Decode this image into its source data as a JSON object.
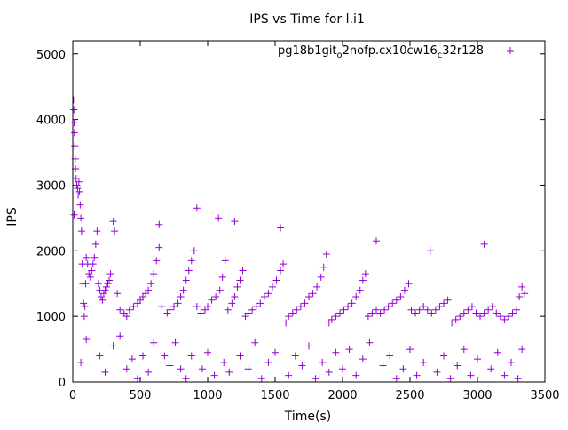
{
  "chart_data": {
    "type": "scatter",
    "title": "IPS vs Time for l.i1",
    "xlabel": "Time(s)",
    "ylabel": "IPS",
    "xlim": [
      0,
      3500
    ],
    "ylim": [
      0,
      5200
    ],
    "x_ticks": [
      0,
      500,
      1000,
      1500,
      2000,
      2500,
      3000,
      3500
    ],
    "y_ticks": [
      0,
      1000,
      2000,
      3000,
      4000,
      5000
    ],
    "grid": false,
    "legend_position": "top-right",
    "marker": "+",
    "color": "#9400d3",
    "series": [
      {
        "name_parts": [
          "pg18b1git",
          "o",
          "2nofp.cx10cw16",
          "c",
          "32r128"
        ],
        "x_range": [
          5,
          3350
        ],
        "points": [
          [
            5,
            4300
          ],
          [
            8,
            4150
          ],
          [
            10,
            3950
          ],
          [
            12,
            3800
          ],
          [
            15,
            3600
          ],
          [
            18,
            3400
          ],
          [
            20,
            3250
          ],
          [
            25,
            3100
          ],
          [
            30,
            3000
          ],
          [
            35,
            2950
          ],
          [
            40,
            2850
          ],
          [
            45,
            3050
          ],
          [
            50,
            2900
          ],
          [
            55,
            2700
          ],
          [
            60,
            2500
          ],
          [
            65,
            2300
          ],
          [
            70,
            1800
          ],
          [
            75,
            1500
          ],
          [
            80,
            1200
          ],
          [
            85,
            1000
          ],
          [
            90,
            1150
          ],
          [
            95,
            1500
          ],
          [
            100,
            1900
          ],
          [
            110,
            1800
          ],
          [
            120,
            1650
          ],
          [
            130,
            1600
          ],
          [
            140,
            1700
          ],
          [
            150,
            1800
          ],
          [
            160,
            1900
          ],
          [
            170,
            2100
          ],
          [
            180,
            2300
          ],
          [
            190,
            1500
          ],
          [
            200,
            1400
          ],
          [
            210,
            1300
          ],
          [
            220,
            1250
          ],
          [
            230,
            1350
          ],
          [
            240,
            1400
          ],
          [
            250,
            1450
          ],
          [
            260,
            1500
          ],
          [
            270,
            1550
          ],
          [
            280,
            1650
          ],
          [
            300,
            2450
          ],
          [
            310,
            2300
          ],
          [
            330,
            1350
          ],
          [
            350,
            1100
          ],
          [
            380,
            1050
          ],
          [
            400,
            1000
          ],
          [
            420,
            1100
          ],
          [
            450,
            1150
          ],
          [
            480,
            1200
          ],
          [
            500,
            1250
          ],
          [
            520,
            1300
          ],
          [
            540,
            1350
          ],
          [
            560,
            1400
          ],
          [
            580,
            1500
          ],
          [
            600,
            1650
          ],
          [
            620,
            1850
          ],
          [
            640,
            2050
          ],
          [
            660,
            1150
          ],
          [
            700,
            1050
          ],
          [
            720,
            1100
          ],
          [
            750,
            1150
          ],
          [
            780,
            1200
          ],
          [
            800,
            1300
          ],
          [
            820,
            1400
          ],
          [
            840,
            1550
          ],
          [
            860,
            1700
          ],
          [
            880,
            1850
          ],
          [
            900,
            2000
          ],
          [
            920,
            1150
          ],
          [
            950,
            1050
          ],
          [
            980,
            1100
          ],
          [
            1000,
            1150
          ],
          [
            1030,
            1250
          ],
          [
            1060,
            1300
          ],
          [
            1090,
            1400
          ],
          [
            1110,
            1600
          ],
          [
            1130,
            1850
          ],
          [
            1150,
            1100
          ],
          [
            1180,
            1200
          ],
          [
            1200,
            1300
          ],
          [
            1220,
            1450
          ],
          [
            1240,
            1550
          ],
          [
            1260,
            1700
          ],
          [
            1280,
            1000
          ],
          [
            1300,
            1050
          ],
          [
            1330,
            1100
          ],
          [
            1360,
            1150
          ],
          [
            1390,
            1200
          ],
          [
            1420,
            1300
          ],
          [
            1450,
            1350
          ],
          [
            1480,
            1450
          ],
          [
            1510,
            1550
          ],
          [
            1540,
            1700
          ],
          [
            1560,
            1800
          ],
          [
            1580,
            900
          ],
          [
            1600,
            1000
          ],
          [
            1630,
            1050
          ],
          [
            1660,
            1100
          ],
          [
            1690,
            1150
          ],
          [
            1720,
            1200
          ],
          [
            1750,
            1300
          ],
          [
            1780,
            1350
          ],
          [
            1810,
            1450
          ],
          [
            1840,
            1600
          ],
          [
            1860,
            1750
          ],
          [
            1880,
            1950
          ],
          [
            1900,
            900
          ],
          [
            1920,
            950
          ],
          [
            1950,
            1000
          ],
          [
            1980,
            1050
          ],
          [
            2010,
            1100
          ],
          [
            2040,
            1150
          ],
          [
            2070,
            1200
          ],
          [
            2100,
            1300
          ],
          [
            2130,
            1400
          ],
          [
            2150,
            1550
          ],
          [
            2170,
            1650
          ],
          [
            2190,
            1000
          ],
          [
            2220,
            1050
          ],
          [
            2250,
            1100
          ],
          [
            2280,
            1050
          ],
          [
            2310,
            1100
          ],
          [
            2340,
            1150
          ],
          [
            2370,
            1200
          ],
          [
            2400,
            1250
          ],
          [
            2430,
            1300
          ],
          [
            2460,
            1400
          ],
          [
            2490,
            1500
          ],
          [
            2510,
            1100
          ],
          [
            2540,
            1050
          ],
          [
            2570,
            1100
          ],
          [
            2600,
            1150
          ],
          [
            2630,
            1100
          ],
          [
            2660,
            1050
          ],
          [
            2690,
            1100
          ],
          [
            2720,
            1150
          ],
          [
            2750,
            1200
          ],
          [
            2780,
            1250
          ],
          [
            2810,
            900
          ],
          [
            2840,
            950
          ],
          [
            2870,
            1000
          ],
          [
            2900,
            1050
          ],
          [
            2930,
            1100
          ],
          [
            2960,
            1150
          ],
          [
            2990,
            1050
          ],
          [
            3020,
            1000
          ],
          [
            3050,
            1050
          ],
          [
            3080,
            1100
          ],
          [
            3110,
            1150
          ],
          [
            3140,
            1050
          ],
          [
            3170,
            1000
          ],
          [
            3200,
            950
          ],
          [
            3230,
            1000
          ],
          [
            3260,
            1050
          ],
          [
            3290,
            1100
          ],
          [
            3310,
            1300
          ],
          [
            3330,
            1450
          ],
          [
            3350,
            1350
          ],
          [
            10,
            2550
          ],
          [
            60,
            300
          ],
          [
            100,
            650
          ],
          [
            200,
            400
          ],
          [
            240,
            150
          ],
          [
            300,
            550
          ],
          [
            350,
            700
          ],
          [
            400,
            200
          ],
          [
            440,
            350
          ],
          [
            480,
            50
          ],
          [
            520,
            400
          ],
          [
            560,
            150
          ],
          [
            600,
            600
          ],
          [
            640,
            2400
          ],
          [
            680,
            400
          ],
          [
            720,
            250
          ],
          [
            760,
            600
          ],
          [
            800,
            200
          ],
          [
            840,
            50
          ],
          [
            880,
            400
          ],
          [
            920,
            2650
          ],
          [
            960,
            200
          ],
          [
            1000,
            450
          ],
          [
            1050,
            100
          ],
          [
            1080,
            2500
          ],
          [
            1120,
            300
          ],
          [
            1160,
            150
          ],
          [
            1200,
            2450
          ],
          [
            1240,
            400
          ],
          [
            1300,
            200
          ],
          [
            1350,
            600
          ],
          [
            1400,
            50
          ],
          [
            1450,
            300
          ],
          [
            1500,
            450
          ],
          [
            1540,
            2350
          ],
          [
            1600,
            100
          ],
          [
            1650,
            400
          ],
          [
            1700,
            250
          ],
          [
            1750,
            550
          ],
          [
            1800,
            50
          ],
          [
            1850,
            300
          ],
          [
            1900,
            150
          ],
          [
            1950,
            450
          ],
          [
            2000,
            200
          ],
          [
            2050,
            500
          ],
          [
            2100,
            100
          ],
          [
            2150,
            350
          ],
          [
            2200,
            600
          ],
          [
            2250,
            2150
          ],
          [
            2300,
            250
          ],
          [
            2350,
            400
          ],
          [
            2400,
            50
          ],
          [
            2450,
            200
          ],
          [
            2500,
            500
          ],
          [
            2550,
            100
          ],
          [
            2600,
            300
          ],
          [
            2650,
            2000
          ],
          [
            2700,
            150
          ],
          [
            2750,
            400
          ],
          [
            2800,
            50
          ],
          [
            2850,
            250
          ],
          [
            2900,
            500
          ],
          [
            2950,
            100
          ],
          [
            3000,
            350
          ],
          [
            3050,
            2100
          ],
          [
            3100,
            200
          ],
          [
            3150,
            450
          ],
          [
            3200,
            100
          ],
          [
            3250,
            300
          ],
          [
            3300,
            50
          ],
          [
            3330,
            500
          ]
        ]
      }
    ]
  }
}
